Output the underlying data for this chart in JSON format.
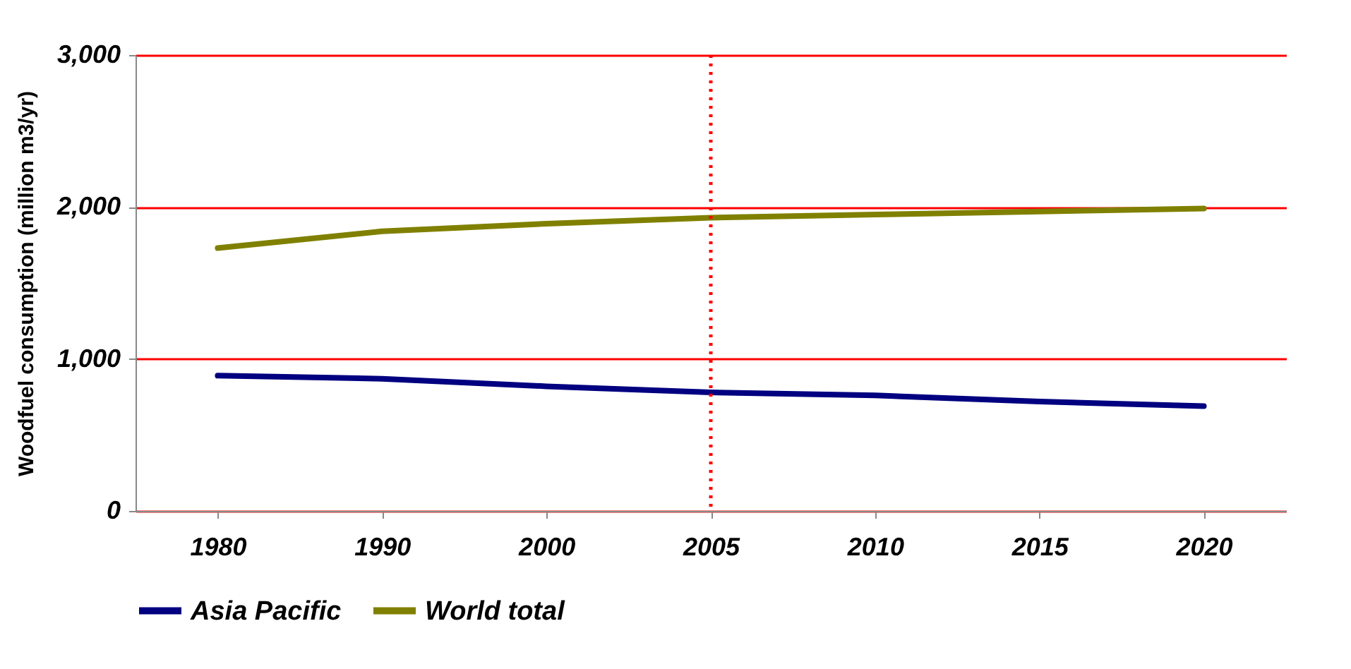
{
  "chart_data": {
    "type": "line",
    "ylabel": "Woodfuel consumption (million m3/yr)",
    "categories": [
      "1980",
      "1990",
      "2000",
      "2005",
      "2010",
      "2015",
      "2020"
    ],
    "series": [
      {
        "name": "Asia Pacific",
        "color": "#000080",
        "values": [
          890,
          870,
          820,
          780,
          760,
          720,
          690
        ]
      },
      {
        "name": "World total",
        "color": "#808000",
        "values": [
          1730,
          1840,
          1890,
          1930,
          1950,
          1970,
          1990
        ]
      }
    ],
    "ylim": [
      0,
      3000
    ],
    "yticks": [
      0,
      {
        "value": 1000,
        "label": "1,000"
      },
      {
        "value": 2000,
        "label": "2,000"
      },
      {
        "value": 3000,
        "label": "3,000"
      }
    ],
    "grid": "y",
    "legend": "bottom",
    "marker": "none",
    "line_style": "solid",
    "ref_lines": [
      {
        "axis": "x",
        "value": "2005",
        "color": "#ff0000",
        "line_style": "dotted"
      }
    ]
  }
}
